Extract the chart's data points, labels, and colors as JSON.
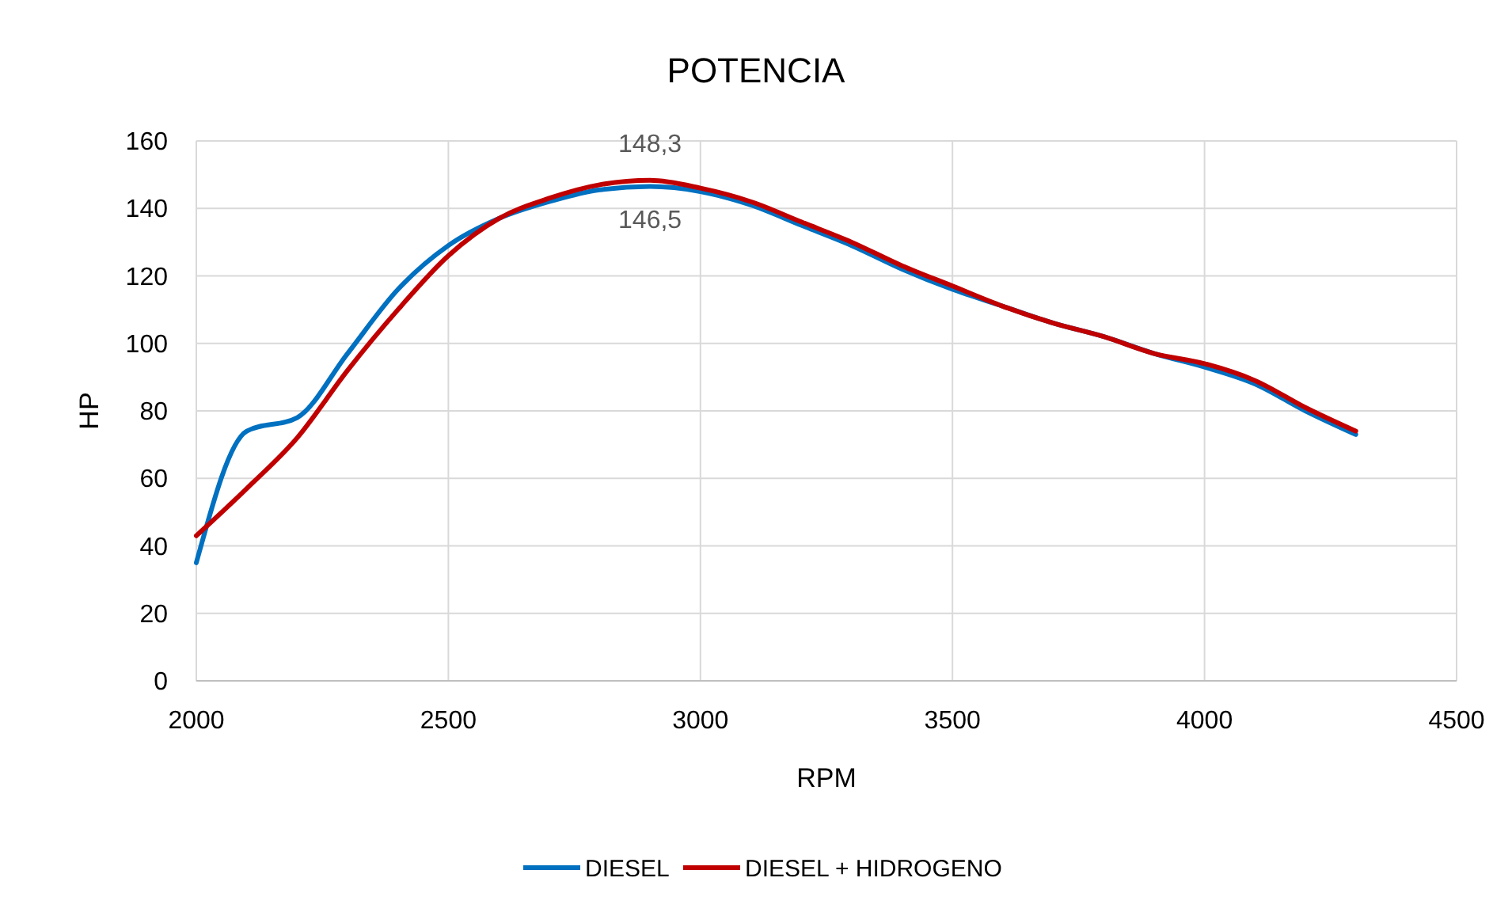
{
  "chart_data": {
    "type": "line",
    "title": "POTENCIA",
    "xlabel": "RPM",
    "ylabel": "HP",
    "x": [
      2000,
      2100,
      2200,
      2300,
      2400,
      2500,
      2600,
      2700,
      2800,
      2900,
      3000,
      3100,
      3200,
      3300,
      3400,
      3500,
      3600,
      3700,
      3800,
      3900,
      4000,
      4100,
      4200,
      4300
    ],
    "series": [
      {
        "name": "DIESEL",
        "color": "#0070c0",
        "values": [
          35,
          74,
          78,
          97,
          116,
          129,
          137,
          142,
          145.5,
          146.5,
          145,
          141,
          135,
          129,
          122,
          116,
          111,
          106,
          102,
          97,
          93,
          88,
          80,
          73
        ],
        "value_labels": [
          null,
          null,
          null,
          null,
          null,
          null,
          null,
          null,
          null,
          "146,5",
          null,
          null,
          null,
          null,
          null,
          null,
          null,
          null,
          null,
          null,
          null,
          null,
          null,
          null
        ]
      },
      {
        "name": "DIESEL + HIDROGENO",
        "color": "#c00000",
        "values": [
          43,
          57,
          72,
          92,
          110,
          126,
          137,
          143,
          147,
          148.3,
          146,
          142,
          136,
          130,
          123,
          117,
          111,
          106,
          102,
          97,
          94,
          89,
          81,
          74
        ],
        "value_labels": [
          null,
          null,
          null,
          null,
          null,
          null,
          null,
          null,
          null,
          "148,3",
          null,
          null,
          null,
          null,
          null,
          null,
          null,
          null,
          null,
          null,
          null,
          null,
          null,
          null
        ]
      }
    ],
    "xlim": [
      2000,
      4500
    ],
    "xticks": [
      2000,
      2500,
      3000,
      3500,
      4000,
      4500
    ],
    "ylim": [
      0,
      160
    ],
    "yticks": [
      0,
      20,
      40,
      60,
      80,
      100,
      120,
      140,
      160
    ],
    "grid": true,
    "legend": "bottom",
    "marker": "none",
    "line_style": "solid"
  }
}
